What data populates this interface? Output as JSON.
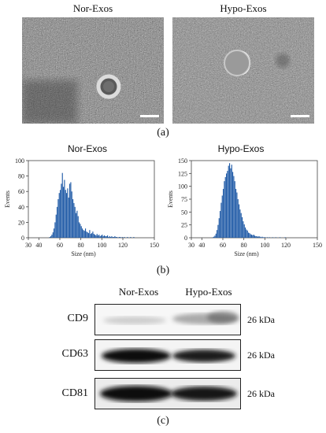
{
  "panel_a": {
    "label": "(a)",
    "images": [
      {
        "title": "Nor-Exos"
      },
      {
        "title": "Hypo-Exos"
      }
    ]
  },
  "panel_b": {
    "label": "(b)",
    "chart_data": [
      {
        "type": "bar",
        "title": "Nor-Exos",
        "xlabel": "Size (nm)",
        "ylabel": "Events",
        "xlim": [
          30,
          150
        ],
        "ylim": [
          0,
          100
        ],
        "xticks": [
          "30",
          "40",
          "60",
          "80",
          "100",
          "120",
          "150"
        ],
        "yticks": [
          "0",
          "20",
          "40",
          "60",
          "80",
          "100"
        ],
        "x": [
          50,
          51,
          52,
          53,
          54,
          55,
          56,
          57,
          58,
          59,
          60,
          61,
          62,
          63,
          64,
          65,
          66,
          67,
          68,
          69,
          70,
          71,
          72,
          73,
          74,
          75,
          76,
          77,
          78,
          79,
          80,
          81,
          82,
          83,
          84,
          85,
          86,
          87,
          88,
          89,
          90,
          91,
          92,
          93,
          94,
          95,
          96,
          97,
          98,
          99,
          100,
          101,
          102,
          103,
          104,
          105,
          106,
          107,
          108,
          109,
          110,
          111,
          112,
          113,
          114,
          115,
          116,
          117,
          118,
          119,
          120,
          121,
          122,
          123,
          124,
          125,
          126,
          127,
          128,
          129,
          130
        ],
        "values": [
          1,
          2,
          4,
          7,
          12,
          20,
          30,
          40,
          50,
          58,
          62,
          70,
          84,
          66,
          75,
          62,
          58,
          64,
          52,
          70,
          72,
          60,
          50,
          45,
          40,
          32,
          35,
          28,
          20,
          18,
          15,
          12,
          10,
          9,
          12,
          8,
          7,
          6,
          10,
          5,
          6,
          8,
          5,
          4,
          3,
          5,
          3,
          4,
          2,
          3,
          4,
          2,
          3,
          2,
          2,
          3,
          1,
          2,
          1,
          2,
          1,
          1,
          2,
          1,
          1,
          0,
          1,
          1,
          0,
          1,
          0,
          1,
          0,
          0,
          1,
          0,
          0,
          1,
          0,
          0,
          1
        ]
      },
      {
        "type": "bar",
        "title": "Hypo-Exos",
        "xlabel": "Size (nm)",
        "ylabel": "Events",
        "xlim": [
          30,
          150
        ],
        "ylim": [
          0,
          150
        ],
        "xticks": [
          "30",
          "40",
          "60",
          "80",
          "100",
          "120",
          "150"
        ],
        "yticks": [
          "0",
          "25",
          "50",
          "75",
          "100",
          "125",
          "150"
        ],
        "x": [
          50,
          51,
          52,
          53,
          54,
          55,
          56,
          57,
          58,
          59,
          60,
          61,
          62,
          63,
          64,
          65,
          66,
          67,
          68,
          69,
          70,
          71,
          72,
          73,
          74,
          75,
          76,
          77,
          78,
          79,
          80,
          81,
          82,
          83,
          84,
          85,
          86,
          87,
          88,
          89,
          90,
          91,
          92,
          93,
          94,
          95,
          96,
          97,
          98,
          99,
          100,
          101,
          102,
          103,
          104,
          105,
          106,
          107,
          108,
          109,
          110,
          111,
          112,
          113,
          114,
          115,
          116,
          117,
          118,
          119,
          120
        ],
        "values": [
          1,
          2,
          4,
          8,
          15,
          25,
          38,
          52,
          68,
          82,
          95,
          110,
          118,
          125,
          130,
          140,
          145,
          135,
          142,
          128,
          120,
          110,
          95,
          88,
          75,
          65,
          55,
          48,
          40,
          32,
          26,
          20,
          16,
          14,
          10,
          9,
          7,
          6,
          5,
          6,
          4,
          3,
          3,
          2,
          3,
          2,
          1,
          2,
          1,
          1,
          1,
          0,
          1,
          0,
          1,
          0,
          0,
          1,
          0,
          0,
          1,
          0,
          0,
          0,
          1,
          0,
          0,
          0,
          0,
          1,
          0
        ]
      }
    ]
  },
  "panel_c": {
    "label": "(c)",
    "lanes": [
      "Nor-Exos",
      "Hypo-Exos"
    ],
    "blots": [
      {
        "marker": "CD9",
        "size": "26 kDa"
      },
      {
        "marker": "CD63",
        "size": "26 kDa"
      },
      {
        "marker": "CD81",
        "size": "26 kDa"
      }
    ]
  }
}
